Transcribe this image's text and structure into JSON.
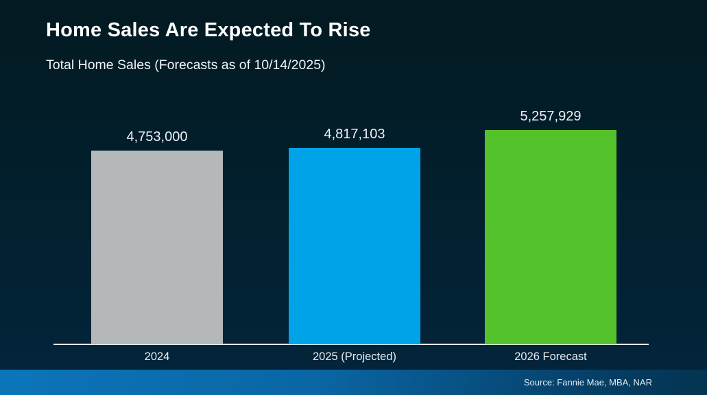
{
  "chart_data": {
    "type": "bar",
    "title": "Home Sales Are Expected To Rise",
    "subtitle": "Total Home Sales (Forecasts as of 10/14/2025)",
    "categories": [
      "2024",
      "2025 (Projected)",
      "2026 Forecast"
    ],
    "values": [
      4753000,
      4817103,
      5257929
    ],
    "value_labels": [
      "4,753,000",
      "4,817,103",
      "5,257,929"
    ],
    "bar_colors": [
      "#B5B8BA",
      "#00A3E8",
      "#54C32B"
    ],
    "ylim": [
      0,
      5257929
    ],
    "xlabel": "",
    "ylabel": "",
    "grid": false,
    "legend": null,
    "background_colors": [
      "#031A21",
      "#03253C"
    ],
    "axis_line_color": "#EEF1F3"
  },
  "footer": {
    "source_label": "Source: Fannie Mae, MBA, NAR",
    "gradient_colors": [
      "#0C75BA",
      "#04344F"
    ]
  }
}
